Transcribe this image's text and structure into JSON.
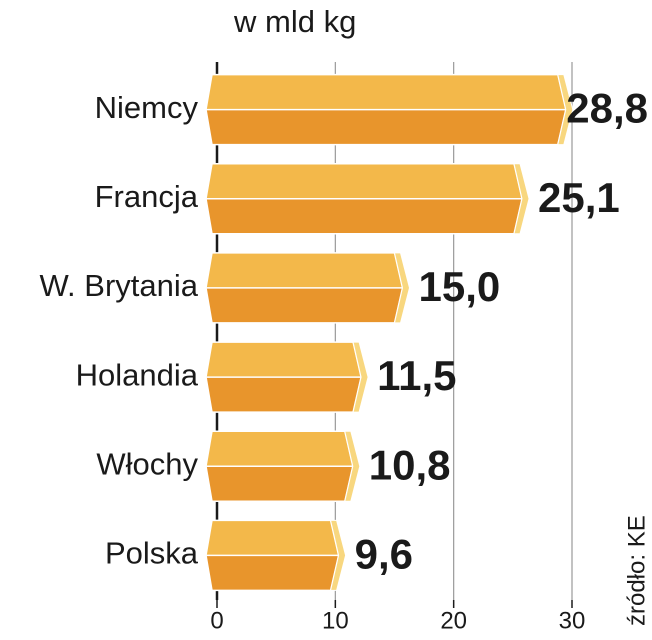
{
  "chart_data": {
    "type": "bar",
    "orientation": "horizontal",
    "title": "w mld kg",
    "source": "źródło: KE",
    "categories": [
      "Niemcy",
      "Francja",
      "W. Brytania",
      "Holandia",
      "Włochy",
      "Polska"
    ],
    "values": [
      28.8,
      25.1,
      15.0,
      11.5,
      10.8,
      9.6
    ],
    "value_labels": [
      "28,8",
      "25,1",
      "15,0",
      "11,5",
      "10,8",
      "9,6"
    ],
    "value_label_colors": [
      "#1a1a1a",
      "#1a1a1a",
      "#1a1a1a",
      "#1a1a1a",
      "#1a1a1a",
      "#c8102e"
    ],
    "colors": {
      "top": "#f3b84a",
      "bottom": "#e8952c",
      "tip": "#f8d77f"
    },
    "xlim": [
      0,
      30
    ],
    "xticks": [
      0,
      10,
      20,
      30
    ],
    "grid": true
  }
}
